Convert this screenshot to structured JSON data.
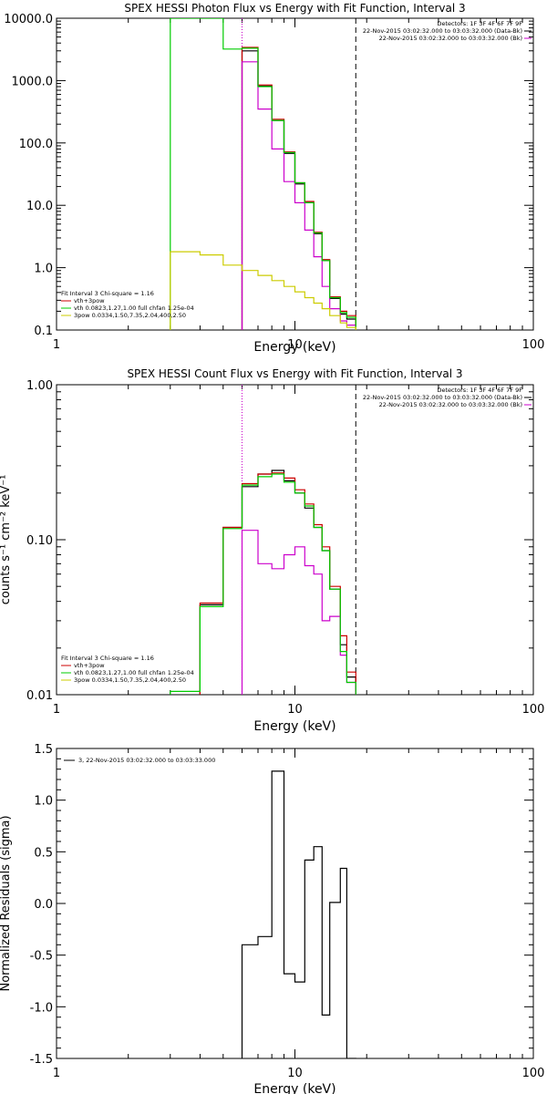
{
  "chart_data": [
    {
      "type": "line",
      "title": "SPEX HESSI Photon Flux vs Energy with Fit Function, Interval 3",
      "xlabel": "Energy (keV)",
      "ylabel": "",
      "xscale": "log",
      "yscale": "log",
      "xlim": [
        1,
        100
      ],
      "ylim": [
        0.1,
        10000
      ],
      "xticks": [
        "1",
        "10",
        "100"
      ],
      "yticks": [
        "0.1",
        "1.0",
        "10.0",
        "100.0",
        "1000.0",
        "10000.0"
      ],
      "vlines": [
        {
          "x": 6.0,
          "style": "dotted",
          "color": "#000000"
        },
        {
          "x": 6.0,
          "style": "dotted",
          "color": "#cc00cc"
        },
        {
          "x": 18.0,
          "style": "dashed",
          "color": "#000000"
        }
      ],
      "info_top": [
        "Detectors: 1F 3F 4F 6F 7F 9F",
        "22-Nov-2015 03:02:32.000 to 03:03:32.000 (Data-Bk)",
        "22-Nov-2015 03:02:32.000 to 03:03:32.000 (Bk)"
      ],
      "info_legend_colors": [
        "#000000",
        "#cc00cc"
      ],
      "fit_legend": [
        {
          "label": "Fit Interval 3   Chi-square = 1.16",
          "color": null
        },
        {
          "label": "vth+3pow",
          "color": "#cc0000"
        },
        {
          "label": "vth 0.0823,1.27,1.00  full chfan 1.25e-04",
          "color": "#00cc00"
        },
        {
          "label": "3pow 0.0334,1.50,7.35,2.04,400,2.50",
          "color": "#cccc00"
        }
      ],
      "series": [
        {
          "color": "#000000",
          "from": 6.0,
          "to": 18.0,
          "edges": [
            6.0,
            7.0,
            8.0,
            9.0,
            10.0,
            11.0,
            12.0,
            13.0,
            14.0,
            15.5,
            16.5,
            18.0
          ],
          "values": [
            3000,
            820,
            230,
            68,
            22,
            11,
            3.5,
            1.3,
            0.32,
            0.18,
            0.15
          ]
        },
        {
          "color": "#cc0000",
          "from": 6.0,
          "to": 18.0,
          "edges": [
            6.0,
            7.0,
            8.0,
            9.0,
            10.0,
            11.0,
            12.0,
            13.0,
            14.0,
            15.5,
            16.5,
            18.0
          ],
          "values": [
            3400,
            850,
            240,
            72,
            23,
            11.5,
            3.7,
            1.35,
            0.34,
            0.2,
            0.17
          ]
        },
        {
          "color": "#cc00cc",
          "from": 6.0,
          "to": 18.0,
          "edges": [
            6.0,
            7.0,
            8.0,
            9.0,
            10.0,
            11.0,
            12.0,
            13.0,
            14.0,
            15.5,
            16.5,
            18.0
          ],
          "values": [
            2000,
            350,
            80,
            24,
            11,
            4,
            1.5,
            0.5,
            0.22,
            0.14,
            0.12
          ]
        },
        {
          "color": "#00cc00",
          "from": 3.0,
          "to": 18.0,
          "edges": [
            3.0,
            4.0,
            5.0,
            6.0,
            7.0,
            8.0,
            9.0,
            10.0,
            11.0,
            12.0,
            13.0,
            14.0,
            15.5,
            16.5,
            18.0
          ],
          "values": [
            12000,
            12000,
            3200,
            3300,
            800,
            230,
            70,
            23,
            11,
            3.6,
            1.3,
            0.33,
            0.19,
            0.16
          ]
        },
        {
          "color": "#cccc00",
          "from": 3.0,
          "to": 18.0,
          "edges": [
            3.0,
            4.0,
            5.0,
            6.0,
            7.0,
            8.0,
            9.0,
            10.0,
            11.0,
            12.0,
            13.0,
            14.0,
            15.5,
            16.5,
            18.0
          ],
          "values": [
            1.8,
            1.6,
            1.1,
            0.9,
            0.75,
            0.62,
            0.5,
            0.41,
            0.33,
            0.27,
            0.22,
            0.17,
            0.13,
            0.11
          ]
        }
      ]
    },
    {
      "type": "line",
      "title": "SPEX HESSI Count Flux vs Energy with Fit Function, Interval 3",
      "xlabel": "Energy (keV)",
      "ylabel": "counts s⁻¹ cm⁻² keV⁻¹",
      "xscale": "log",
      "yscale": "log",
      "xlim": [
        1,
        100
      ],
      "ylim": [
        0.01,
        1.0
      ],
      "xticks": [
        "1",
        "10",
        "100"
      ],
      "yticks": [
        "0.01",
        "0.10",
        "1.00"
      ],
      "vlines": [
        {
          "x": 6.0,
          "style": "dotted",
          "color": "#000000"
        },
        {
          "x": 6.0,
          "style": "dotted",
          "color": "#cc00cc"
        },
        {
          "x": 18.0,
          "style": "dashed",
          "color": "#000000"
        }
      ],
      "info_top": [
        "Detectors: 1F 3F 4F 6F 7F 9F",
        "22-Nov-2015 03:02:32.000 to 03:03:32.000 (Data-Bk)",
        "22-Nov-2015 03:02:32.000 to 03:03:32.000 (Bk)"
      ],
      "info_legend_colors": [
        "#000000",
        "#cc00cc"
      ],
      "fit_legend": [
        {
          "label": "Fit Interval 3   Chi-square = 1.16",
          "color": null
        },
        {
          "label": "vth+3pow",
          "color": "#cc0000"
        },
        {
          "label": "vth 0.0823,1.27,1.00  full chfan 1.25e-04",
          "color": "#00cc00"
        },
        {
          "label": "3pow 0.0334,1.50,7.35,2.04,400,2.50",
          "color": "#cccc00"
        }
      ],
      "series": [
        {
          "color": "#000000",
          "from": 4.0,
          "to": 18.0,
          "edges": [
            4.0,
            5.0,
            6.0,
            7.0,
            8.0,
            9.0,
            10.0,
            11.0,
            12.0,
            13.0,
            14.0,
            15.5,
            16.5,
            18.0
          ],
          "values": [
            0.038,
            0.12,
            0.22,
            0.265,
            0.28,
            0.24,
            0.2,
            0.16,
            0.12,
            0.085,
            0.048,
            0.021,
            0.013
          ]
        },
        {
          "color": "#cc0000",
          "from": 4.0,
          "to": 18.0,
          "edges": [
            4.0,
            5.0,
            6.0,
            7.0,
            8.0,
            9.0,
            10.0,
            11.0,
            12.0,
            13.0,
            14.0,
            15.5,
            16.5,
            18.0
          ],
          "values": [
            0.039,
            0.12,
            0.23,
            0.265,
            0.27,
            0.25,
            0.21,
            0.17,
            0.125,
            0.09,
            0.05,
            0.024,
            0.014
          ]
        },
        {
          "color": "#cc00cc",
          "from": 6.0,
          "to": 18.0,
          "edges": [
            6.0,
            7.0,
            8.0,
            9.0,
            10.0,
            11.0,
            12.0,
            13.0,
            14.0,
            15.5,
            16.5,
            18.0
          ],
          "values": [
            0.115,
            0.07,
            0.065,
            0.08,
            0.09,
            0.068,
            0.06,
            0.03,
            0.032,
            0.018,
            0.012
          ]
        },
        {
          "color": "#00cc00",
          "from": 3.0,
          "to": 18.0,
          "edges": [
            3.0,
            4.0,
            5.0,
            6.0,
            7.0,
            8.0,
            9.0,
            10.0,
            11.0,
            12.0,
            13.0,
            14.0,
            15.5,
            16.5,
            18.0
          ],
          "values": [
            0.0105,
            0.037,
            0.118,
            0.225,
            0.255,
            0.265,
            0.235,
            0.2,
            0.165,
            0.12,
            0.085,
            0.048,
            0.019,
            0.012
          ]
        }
      ]
    },
    {
      "type": "line",
      "title": "",
      "xlabel": "Energy (keV)",
      "ylabel": "Normalized Residuals (sigma)",
      "xscale": "log",
      "yscale": "linear",
      "xlim": [
        1,
        100
      ],
      "ylim": [
        -1.5,
        1.5
      ],
      "xticks": [
        "1",
        "10",
        "100"
      ],
      "yticks": [
        "-1.5",
        "-1.0",
        "-0.5",
        "0.0",
        "0.5",
        "1.0",
        "1.5"
      ],
      "legend": [
        {
          "label": "3, 22-Nov-2015 03:02:32.000 to 03:03:33.000",
          "color": "#000000"
        }
      ],
      "series": [
        {
          "color": "#000000",
          "from": 6.0,
          "to": 18.0,
          "edges": [
            6.0,
            7.0,
            8.0,
            9.0,
            10.0,
            11.0,
            12.0,
            13.0,
            14.0,
            15.5,
            16.5,
            18.0
          ],
          "values": [
            -0.4,
            -0.32,
            1.28,
            -0.68,
            -0.76,
            0.42,
            0.55,
            -1.08,
            0.01,
            0.34,
            -1.6
          ]
        }
      ]
    }
  ]
}
